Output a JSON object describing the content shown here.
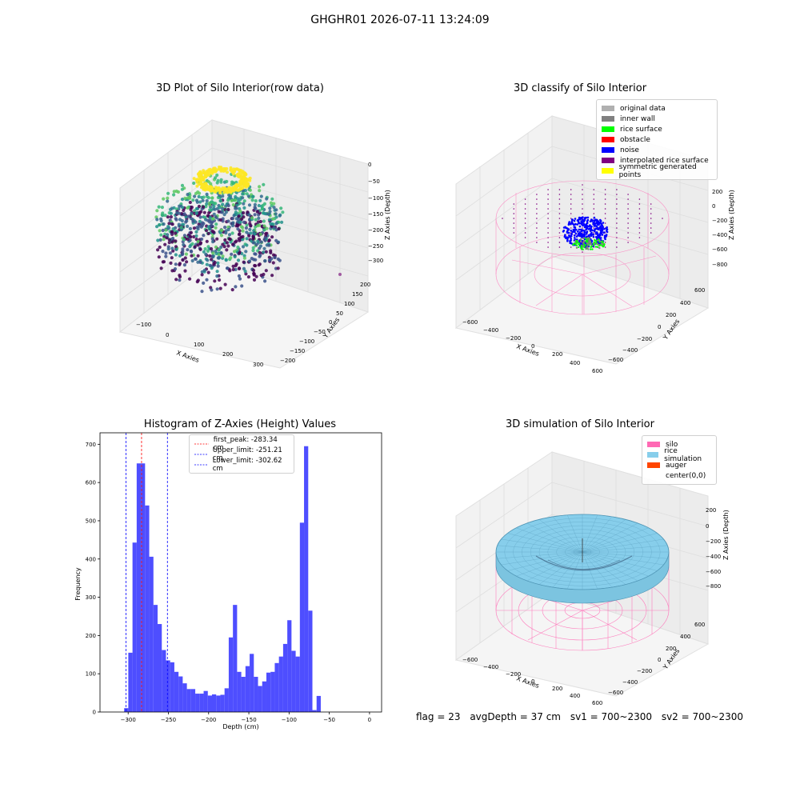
{
  "suptitle": "GHGHR01 2026-07-11 13:24:09",
  "footer": {
    "flag": "flag = 23",
    "avg_depth": "avgDepth = 37 cm",
    "sv1": "sv1 = 700~2300",
    "sv2": "sv2 = 700~2300"
  },
  "panels": {
    "raw": {
      "title": "3D Plot of Silo Interior(row data)",
      "xlabel": "X Axies",
      "ylabel": "Y Axies",
      "zlabel": "Z Axies (Depth)",
      "xticks": [
        "−100",
        "0",
        "100",
        "200",
        "300"
      ],
      "yticks": [
        "200",
        "150",
        "100",
        "50",
        "0",
        "−50",
        "−100",
        "−150",
        "−200"
      ],
      "zticks": [
        "0",
        "−50",
        "−100",
        "−150",
        "−200",
        "−250",
        "−300"
      ]
    },
    "classify": {
      "title": "3D classify of Silo Interior",
      "xlabel": "X Axies",
      "ylabel": "Y Axies",
      "zlabel": "Z Axies (Depth)",
      "xticks": [
        "−600",
        "−400",
        "−200",
        "0",
        "200",
        "400",
        "600"
      ],
      "yticks": [
        "600",
        "400",
        "200",
        "0",
        "−200",
        "−400",
        "−600"
      ],
      "zticks": [
        "200",
        "0",
        "−200",
        "−400",
        "−600",
        "−800"
      ],
      "legend": [
        {
          "label": "original data",
          "color": "#b0b0b0"
        },
        {
          "label": "inner wall",
          "color": "#808080"
        },
        {
          "label": "rice surface",
          "color": "#00ff00"
        },
        {
          "label": "obstacle",
          "color": "#ff0000"
        },
        {
          "label": "noise",
          "color": "#0000ff"
        },
        {
          "label": "interpolated rice surface",
          "color": "#800080"
        },
        {
          "label": "symmetric generated points",
          "color": "#ffff00"
        }
      ]
    },
    "simulation": {
      "title": "3D simulation of Silo Interior",
      "xlabel": "X Axies",
      "ylabel": "Y Axies",
      "zlabel": "Z Axies (Depth)",
      "xticks": [
        "−600",
        "−400",
        "−200",
        "0",
        "200",
        "400",
        "600"
      ],
      "yticks": [
        "600",
        "400",
        "200",
        "0",
        "−200",
        "−400",
        "−600"
      ],
      "zticks": [
        "200",
        "0",
        "−200",
        "−400",
        "−600",
        "−800"
      ],
      "legend": [
        {
          "label": "silo",
          "color": "#ff69b4"
        },
        {
          "label": "rice simulation",
          "color": "#87ceeb"
        },
        {
          "label": "auger",
          "color": "#ff4500"
        },
        {
          "label": "center(0,0)",
          "color": ""
        }
      ]
    }
  },
  "chart_data": [
    {
      "type": "bar",
      "title": "Histogram of Z-Axies (Height) Values",
      "xlabel": "Depth (cm)",
      "ylabel": "Frequency",
      "xlim": [
        -335,
        15
      ],
      "ylim": [
        0,
        730
      ],
      "xticks": [
        -300,
        -250,
        -200,
        -150,
        -100,
        -50,
        0
      ],
      "yticks": [
        0,
        100,
        200,
        300,
        400,
        500,
        600,
        700
      ],
      "bin_width": 5.2,
      "bin_start": -305,
      "values": [
        10,
        155,
        443,
        650,
        650,
        540,
        406,
        280,
        230,
        162,
        135,
        130,
        105,
        93,
        75,
        60,
        60,
        48,
        48,
        55,
        43,
        46,
        43,
        45,
        62,
        195,
        280,
        105,
        92,
        120,
        152,
        92,
        68,
        80,
        103,
        105,
        128,
        145,
        178,
        240,
        160,
        145,
        495,
        695,
        265,
        5,
        42
      ],
      "color": "#4444ff",
      "vlines": [
        {
          "label": "first_peak: -283.34 cm",
          "x": -283.34,
          "color": "#ff0000"
        },
        {
          "label": "Upper_limit: -251.21 cm",
          "x": -251.21,
          "color": "#0000ff"
        },
        {
          "label": "Lower_limit: -302.62 cm",
          "x": -302.62,
          "color": "#0000ff"
        }
      ]
    }
  ]
}
